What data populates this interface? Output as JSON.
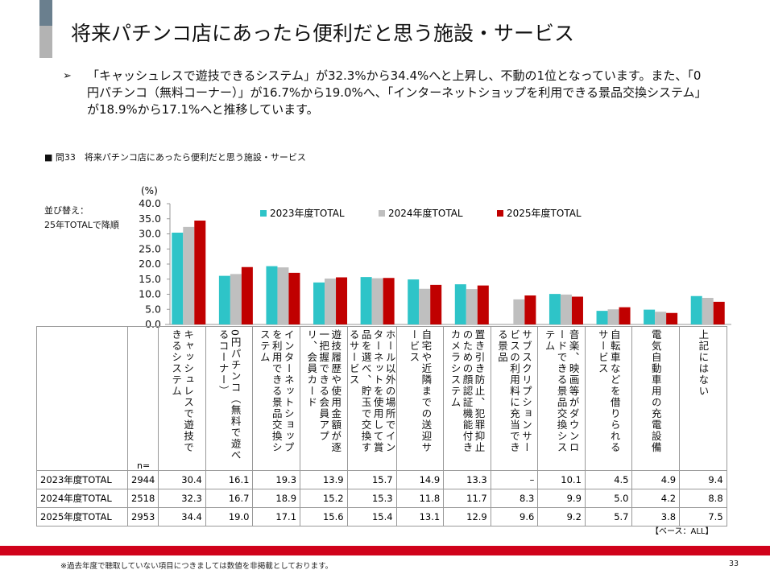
{
  "title": "将来パチンコ店にあったら便利だと思う施設・サービス",
  "summary": {
    "bullet": "➢",
    "text": "「キャッシュレスで遊技できるシステム」が32.3%から34.4%へと上昇し、不動の1位となっています。また、「0円パチンコ（無料コーナー）」が16.7%から19.0%へ、「インターネットショップを利用できる景品交換システム」が18.9%から17.1%へと推移しています。"
  },
  "question_label": "■ 問33　将来パチンコ店にあったら便利だと思う施設・サービス",
  "sort_label": [
    "並び替え：",
    "25年TOTALで降順"
  ],
  "n_label": "n=",
  "base_note": "【ベース：ALL】",
  "footnote": "※過去年度で聴取していない項目につきましては数値を非掲載としております。",
  "page_number": "33",
  "chart_data": {
    "type": "bar",
    "ylabel": "(%)",
    "ylim": [
      0,
      40
    ],
    "yticks": [
      "0.0",
      "5.0",
      "10.0",
      "15.0",
      "20.0",
      "25.0",
      "30.0",
      "35.0",
      "40.0"
    ],
    "legend_position": "top",
    "categories": [
      "キャッシュレスで遊技できるシステム",
      "0円パチンコ（無料で遊べるコーナー）",
      "インターネットショップを利用できる景品交換システム",
      "遊技履歴や使用金額が逐一把握できる会員アプリ、会員カード",
      "ホール以外の場所でインターネットを使用して賞品を選べ、貯玉で交換するサービス",
      "自宅や近隣までの送迎サービス",
      "置き引き防止、犯罪抑止のための顔認証機能付きカメラシステム",
      "サブスクリプションサービスの利用料に充当できる景品",
      "音楽、映画等がダウンロードできる景品交換システム",
      "自転車などを借りられるサービス",
      "電気自動車用の充電設備",
      "上記にはない"
    ],
    "series": [
      {
        "name": "2023年度TOTAL",
        "n": "2944",
        "color": "#2ec4c8",
        "values": [
          30.4,
          16.1,
          19.3,
          13.9,
          15.7,
          14.9,
          13.3,
          null,
          10.1,
          4.5,
          4.9,
          9.4
        ],
        "labels": [
          "30.4",
          "16.1",
          "19.3",
          "13.9",
          "15.7",
          "14.9",
          "13.3",
          "–",
          "10.1",
          "4.5",
          "4.9",
          "9.4"
        ]
      },
      {
        "name": "2024年度TOTAL",
        "n": "2518",
        "color": "#bfbfbf",
        "values": [
          32.3,
          16.7,
          18.9,
          15.2,
          15.3,
          11.8,
          11.7,
          8.3,
          9.9,
          5.0,
          4.2,
          8.8
        ],
        "labels": [
          "32.3",
          "16.7",
          "18.9",
          "15.2",
          "15.3",
          "11.8",
          "11.7",
          "8.3",
          "9.9",
          "5.0",
          "4.2",
          "8.8"
        ]
      },
      {
        "name": "2025年度TOTAL",
        "n": "2953",
        "color": "#c00000",
        "values": [
          34.4,
          19.0,
          17.1,
          15.6,
          15.4,
          13.1,
          12.9,
          9.6,
          9.2,
          5.7,
          3.8,
          7.5
        ],
        "labels": [
          "34.4",
          "19.0",
          "17.1",
          "15.6",
          "15.4",
          "13.1",
          "12.9",
          "9.6",
          "9.2",
          "5.7",
          "3.8",
          "7.5"
        ]
      }
    ]
  }
}
